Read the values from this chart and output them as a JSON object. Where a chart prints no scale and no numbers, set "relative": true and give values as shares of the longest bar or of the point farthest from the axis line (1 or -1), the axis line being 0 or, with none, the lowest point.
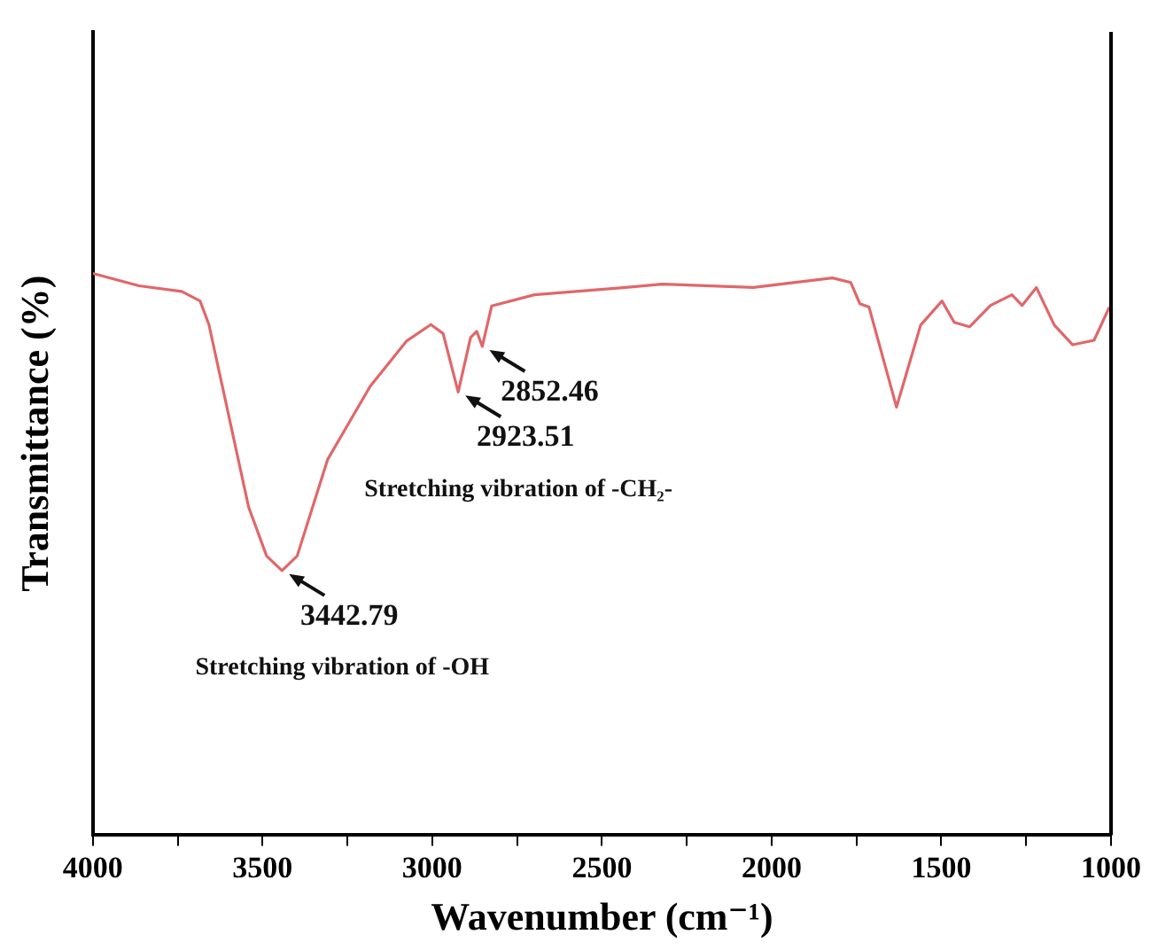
{
  "chart_data": {
    "type": "line",
    "xlabel": "Wavenumber (cm⁻¹)",
    "ylabel": "Transmittance (%)",
    "relative": true,
    "marker": "none",
    "grid": false,
    "legend": false,
    "tick_labels": "x",
    "xlim": [
      4000,
      1000
    ],
    "xticks": [
      4000,
      {
        "value": 3750,
        "label": null
      },
      3500,
      {
        "value": 3250,
        "label": null
      },
      3000,
      {
        "value": 2750,
        "label": null
      },
      2500,
      {
        "value": 2250,
        "label": null
      },
      2000,
      {
        "value": 1750,
        "label": null
      },
      1500,
      {
        "value": 1250,
        "label": null
      },
      1000
    ],
    "series": [
      {
        "color": "#e0676a",
        "x": [
          4000,
          3864,
          3738,
          3684,
          3658,
          3595,
          3541,
          3488,
          3442.79,
          3398,
          3308,
          3183,
          3075,
          3004,
          2968,
          2923.51,
          2887,
          2869,
          2852.46,
          2825,
          2699,
          2430,
          2323,
          2054,
          1821,
          1767,
          1740,
          1713,
          1632,
          1561,
          1498,
          1462,
          1417,
          1355,
          1292,
          1262,
          1220,
          1167,
          1113,
          1050,
          1005
        ],
        "values": [
          1.0,
          0.978,
          0.968,
          0.951,
          0.909,
          0.734,
          0.584,
          0.497,
          0.471,
          0.497,
          0.669,
          0.799,
          0.88,
          0.909,
          0.893,
          0.789,
          0.886,
          0.897,
          0.87,
          0.942,
          0.962,
          0.975,
          0.981,
          0.975,
          0.992,
          0.984,
          0.946,
          0.94,
          0.762,
          0.908,
          0.951,
          0.913,
          0.905,
          0.943,
          0.962,
          0.943,
          0.975,
          0.908,
          0.873,
          0.881,
          0.94
        ]
      }
    ],
    "annotations": [
      {
        "text": "3442.79",
        "x": 3442.79,
        "y": 0.471
      },
      "Stretching vibration of -OH",
      {
        "text": "2923.51",
        "x": 2923.51,
        "y": 0.789
      },
      "Stretching vibration of -CH₂-",
      {
        "text": "2852.46",
        "x": 2852.46,
        "y": 0.87
      }
    ]
  }
}
